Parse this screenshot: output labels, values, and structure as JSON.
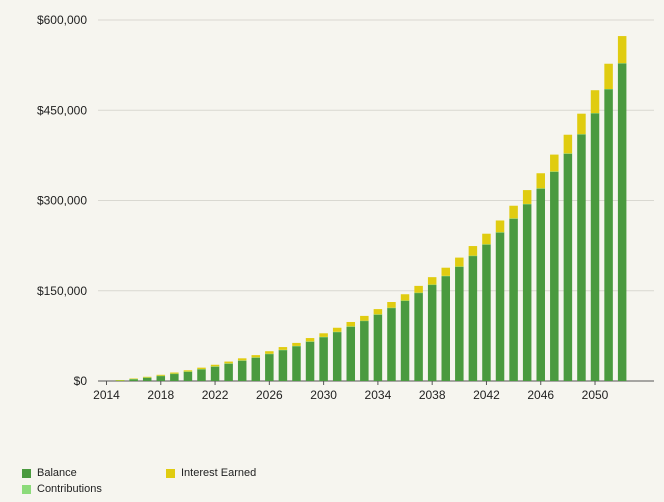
{
  "chart_data": {
    "type": "bar",
    "stacked": true,
    "years": [
      2015,
      2016,
      2017,
      2018,
      2019,
      2020,
      2021,
      2022,
      2023,
      2024,
      2025,
      2026,
      2027,
      2028,
      2029,
      2030,
      2031,
      2032,
      2033,
      2034,
      2035,
      2036,
      2037,
      2038,
      2039,
      2040,
      2041,
      2042,
      2043,
      2044,
      2045,
      2046,
      2047,
      2048,
      2049,
      2050,
      2051,
      2052
    ],
    "series": [
      {
        "name": "Balance",
        "color": "#4a9a3f",
        "values": [
          1000,
          3000,
          5500,
          8500,
          12000,
          15500,
          19500,
          24000,
          29000,
          34000,
          39000,
          45000,
          51500,
          58000,
          65500,
          73000,
          81500,
          90500,
          100000,
          110500,
          121500,
          133500,
          146500,
          160000,
          174500,
          190000,
          208000,
          227000,
          247000,
          270000,
          294000,
          320000,
          348000,
          378000,
          410000,
          445000,
          485000,
          528000
        ]
      },
      {
        "name": "Contributions",
        "color": "#8cdb7a",
        "values": [
          300,
          300,
          300,
          300,
          300,
          300,
          300,
          300,
          300,
          300,
          300,
          300,
          300,
          300,
          300,
          300,
          300,
          300,
          300,
          300,
          300,
          300,
          300,
          300,
          300,
          300,
          300,
          300,
          300,
          300,
          300,
          300,
          300,
          300,
          300,
          300,
          300,
          300
        ]
      },
      {
        "name": "Interest Earned",
        "color": "#e0cc10",
        "values": [
          300,
          800,
          1200,
          1500,
          1800,
          2000,
          2400,
          2700,
          3000,
          3400,
          3700,
          4200,
          4600,
          5000,
          5600,
          6000,
          6700,
          7300,
          7900,
          8700,
          9500,
          10400,
          11300,
          12300,
          13500,
          14800,
          16000,
          17500,
          19500,
          21000,
          23000,
          25000,
          28000,
          31000,
          34000,
          38000,
          42000,
          45000
        ]
      }
    ],
    "xticks": [
      "2014",
      "2018",
      "2022",
      "2026",
      "2030",
      "2034",
      "2038",
      "2042",
      "2046",
      "2050"
    ],
    "yticks": [
      "$0",
      "$150,000",
      "$300,000",
      "$450,000",
      "$600,000"
    ],
    "ylim": [
      0,
      600000
    ],
    "grid": true
  },
  "legend": {
    "balance": "Balance",
    "contributions": "Contributions",
    "interest": "Interest Earned"
  }
}
